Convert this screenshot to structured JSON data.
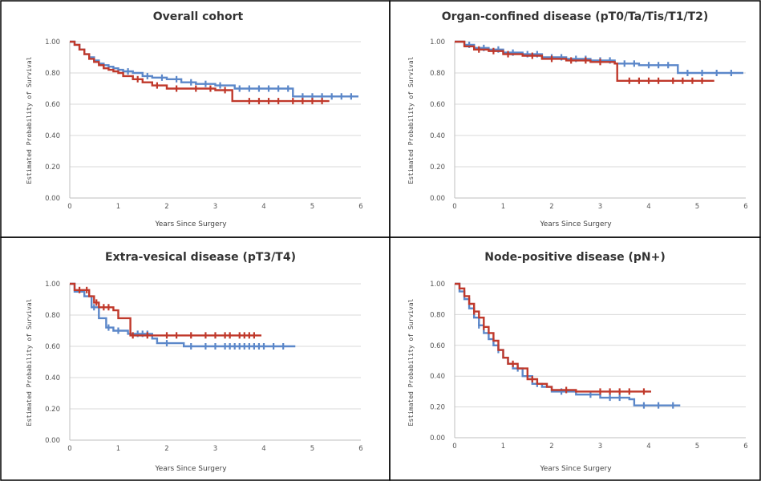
{
  "colors": {
    "blue": "#5b87c9",
    "red": "#c0392b"
  },
  "chart_data": [
    {
      "type": "line",
      "title": "Overall cohort",
      "xlabel": "Years Since Surgery",
      "ylabel": "Estimated Probability of Survival",
      "xlim": [
        0,
        6
      ],
      "ylim": [
        0,
        1
      ],
      "xticks": [
        "0",
        "1",
        "2",
        "3",
        "4",
        "5",
        "6"
      ],
      "yticks": [
        "0.00",
        "0.20",
        "0.40",
        "0.60",
        "0.80",
        "1.00"
      ],
      "grid": "horizontal",
      "series": [
        {
          "color": "blue",
          "points": [
            [
              0,
              1.0
            ],
            [
              0.1,
              0.98
            ],
            [
              0.2,
              0.95
            ],
            [
              0.3,
              0.92
            ],
            [
              0.4,
              0.9
            ],
            [
              0.5,
              0.88
            ],
            [
              0.6,
              0.86
            ],
            [
              0.7,
              0.85
            ],
            [
              0.8,
              0.84
            ],
            [
              0.9,
              0.83
            ],
            [
              1.0,
              0.82
            ],
            [
              1.1,
              0.81
            ],
            [
              1.3,
              0.8
            ],
            [
              1.5,
              0.78
            ],
            [
              1.7,
              0.77
            ],
            [
              2.0,
              0.76
            ],
            [
              2.3,
              0.74
            ],
            [
              2.6,
              0.73
            ],
            [
              3.0,
              0.72
            ],
            [
              3.4,
              0.7
            ],
            [
              3.8,
              0.7
            ],
            [
              4.6,
              0.65
            ],
            [
              5.95,
              0.65
            ]
          ],
          "censor": [
            1.2,
            1.6,
            1.9,
            2.2,
            2.5,
            2.8,
            3.1,
            3.5,
            3.7,
            3.9,
            4.1,
            4.3,
            4.5,
            4.8,
            5.0,
            5.2,
            5.4,
            5.6,
            5.8
          ]
        },
        {
          "color": "red",
          "points": [
            [
              0,
              1.0
            ],
            [
              0.1,
              0.98
            ],
            [
              0.2,
              0.95
            ],
            [
              0.3,
              0.92
            ],
            [
              0.4,
              0.89
            ],
            [
              0.5,
              0.87
            ],
            [
              0.6,
              0.85
            ],
            [
              0.7,
              0.83
            ],
            [
              0.8,
              0.82
            ],
            [
              0.9,
              0.81
            ],
            [
              1.0,
              0.8
            ],
            [
              1.1,
              0.78
            ],
            [
              1.3,
              0.76
            ],
            [
              1.5,
              0.74
            ],
            [
              1.7,
              0.72
            ],
            [
              2.0,
              0.7
            ],
            [
              2.5,
              0.7
            ],
            [
              3.0,
              0.69
            ],
            [
              3.35,
              0.62
            ],
            [
              3.6,
              0.62
            ],
            [
              5.35,
              0.62
            ]
          ],
          "censor": [
            1.4,
            1.8,
            2.2,
            2.6,
            2.9,
            3.2,
            3.7,
            3.9,
            4.1,
            4.3,
            4.6,
            4.8,
            5.0,
            5.2
          ]
        }
      ]
    },
    {
      "type": "line",
      "title": "Organ-confined disease (pT0/Ta/Tis/T1/T2)",
      "xlabel": "Years Since Surgery",
      "ylabel": "Estimated Probability of Survival",
      "xlim": [
        0,
        6
      ],
      "ylim": [
        0,
        1
      ],
      "xticks": [
        "0",
        "1",
        "2",
        "3",
        "4",
        "5",
        "6"
      ],
      "yticks": [
        "0.00",
        "0.20",
        "0.40",
        "0.60",
        "0.80",
        "1.00"
      ],
      "grid": "horizontal",
      "series": [
        {
          "color": "blue",
          "points": [
            [
              0,
              1.0
            ],
            [
              0.2,
              0.98
            ],
            [
              0.4,
              0.96
            ],
            [
              0.7,
              0.95
            ],
            [
              1.0,
              0.93
            ],
            [
              1.4,
              0.92
            ],
            [
              1.8,
              0.9
            ],
            [
              2.3,
              0.89
            ],
            [
              2.8,
              0.88
            ],
            [
              3.3,
              0.86
            ],
            [
              3.8,
              0.85
            ],
            [
              4.6,
              0.8
            ],
            [
              5.95,
              0.8
            ]
          ],
          "censor": [
            0.3,
            0.6,
            0.9,
            1.2,
            1.5,
            1.7,
            2.0,
            2.2,
            2.5,
            2.7,
            3.0,
            3.2,
            3.5,
            3.7,
            4.0,
            4.2,
            4.4,
            4.8,
            5.1,
            5.4,
            5.7
          ]
        },
        {
          "color": "red",
          "points": [
            [
              0,
              1.0
            ],
            [
              0.2,
              0.97
            ],
            [
              0.4,
              0.95
            ],
            [
              0.7,
              0.94
            ],
            [
              1.0,
              0.92
            ],
            [
              1.4,
              0.91
            ],
            [
              1.8,
              0.89
            ],
            [
              2.3,
              0.88
            ],
            [
              2.8,
              0.87
            ],
            [
              3.3,
              0.86
            ],
            [
              3.35,
              0.75
            ],
            [
              5.35,
              0.75
            ]
          ],
          "censor": [
            0.5,
            0.8,
            1.1,
            1.6,
            2.0,
            2.4,
            2.7,
            3.0,
            3.6,
            3.8,
            4.0,
            4.2,
            4.5,
            4.7,
            4.9,
            5.1
          ]
        }
      ]
    },
    {
      "type": "line",
      "title": "Extra-vesical disease (pT3/T4)",
      "xlabel": "Years Since Surgery",
      "ylabel": "Estimated Probability of Survival",
      "xlim": [
        0,
        6
      ],
      "ylim": [
        0,
        1
      ],
      "xticks": [
        "0",
        "1",
        "2",
        "3",
        "4",
        "5",
        "6"
      ],
      "yticks": [
        "0.00",
        "0.20",
        "0.40",
        "0.60",
        "0.80",
        "1.00"
      ],
      "grid": "horizontal",
      "series": [
        {
          "color": "blue",
          "points": [
            [
              0,
              1.0
            ],
            [
              0.1,
              0.95
            ],
            [
              0.3,
              0.92
            ],
            [
              0.45,
              0.85
            ],
            [
              0.6,
              0.78
            ],
            [
              0.75,
              0.72
            ],
            [
              0.9,
              0.7
            ],
            [
              1.2,
              0.68
            ],
            [
              1.7,
              0.65
            ],
            [
              1.8,
              0.62
            ],
            [
              2.35,
              0.6
            ],
            [
              4.65,
              0.6
            ]
          ],
          "censor": [
            0.5,
            0.8,
            1.0,
            1.4,
            1.5,
            1.6,
            2.0,
            2.5,
            2.8,
            3.0,
            3.2,
            3.3,
            3.4,
            3.5,
            3.6,
            3.7,
            3.8,
            3.9,
            4.0,
            4.2,
            4.4
          ]
        },
        {
          "color": "red",
          "points": [
            [
              0,
              1.0
            ],
            [
              0.1,
              0.96
            ],
            [
              0.4,
              0.92
            ],
            [
              0.5,
              0.88
            ],
            [
              0.6,
              0.85
            ],
            [
              0.9,
              0.83
            ],
            [
              1.0,
              0.78
            ],
            [
              1.2,
              0.78
            ],
            [
              1.25,
              0.67
            ],
            [
              3.95,
              0.67
            ]
          ],
          "censor": [
            0.2,
            0.35,
            0.55,
            0.7,
            0.8,
            1.3,
            1.6,
            2.0,
            2.2,
            2.5,
            2.8,
            3.0,
            3.2,
            3.3,
            3.5,
            3.6,
            3.7,
            3.8
          ]
        }
      ]
    },
    {
      "type": "line",
      "title": "Node-positive disease (pN+)",
      "xlabel": "Years Since Surgery",
      "ylabel": "Estimated Probability of Survival",
      "xlim": [
        0,
        6
      ],
      "ylim": [
        0,
        1
      ],
      "xticks": [
        "0",
        "1",
        "2",
        "3",
        "4",
        "5",
        "6"
      ],
      "yticks": [
        "0.00",
        "0.20",
        "0.40",
        "0.60",
        "0.80",
        "1.00"
      ],
      "grid": "horizontal",
      "series": [
        {
          "color": "blue",
          "points": [
            [
              0,
              1.0
            ],
            [
              0.1,
              0.95
            ],
            [
              0.2,
              0.9
            ],
            [
              0.3,
              0.84
            ],
            [
              0.4,
              0.78
            ],
            [
              0.5,
              0.73
            ],
            [
              0.6,
              0.68
            ],
            [
              0.7,
              0.64
            ],
            [
              0.8,
              0.6
            ],
            [
              0.9,
              0.57
            ],
            [
              1.0,
              0.52
            ],
            [
              1.1,
              0.48
            ],
            [
              1.2,
              0.45
            ],
            [
              1.4,
              0.4
            ],
            [
              1.6,
              0.35
            ],
            [
              1.8,
              0.33
            ],
            [
              2.0,
              0.3
            ],
            [
              2.5,
              0.28
            ],
            [
              3.0,
              0.26
            ],
            [
              3.6,
              0.25
            ],
            [
              3.7,
              0.21
            ],
            [
              4.65,
              0.21
            ]
          ],
          "censor": [
            0.5,
            0.9,
            1.3,
            1.7,
            2.2,
            2.8,
            3.2,
            3.4,
            3.9,
            4.2,
            4.5
          ]
        },
        {
          "color": "red",
          "points": [
            [
              0,
              1.0
            ],
            [
              0.1,
              0.97
            ],
            [
              0.2,
              0.92
            ],
            [
              0.3,
              0.87
            ],
            [
              0.4,
              0.82
            ],
            [
              0.5,
              0.78
            ],
            [
              0.6,
              0.72
            ],
            [
              0.7,
              0.68
            ],
            [
              0.8,
              0.63
            ],
            [
              0.9,
              0.57
            ],
            [
              1.0,
              0.52
            ],
            [
              1.1,
              0.48
            ],
            [
              1.3,
              0.45
            ],
            [
              1.5,
              0.38
            ],
            [
              1.7,
              0.35
            ],
            [
              1.9,
              0.33
            ],
            [
              2.0,
              0.31
            ],
            [
              2.5,
              0.3
            ],
            [
              4.05,
              0.3
            ]
          ],
          "censor": [
            0.4,
            0.6,
            1.2,
            1.6,
            2.3,
            3.0,
            3.2,
            3.4,
            3.6,
            3.9
          ]
        }
      ]
    }
  ]
}
